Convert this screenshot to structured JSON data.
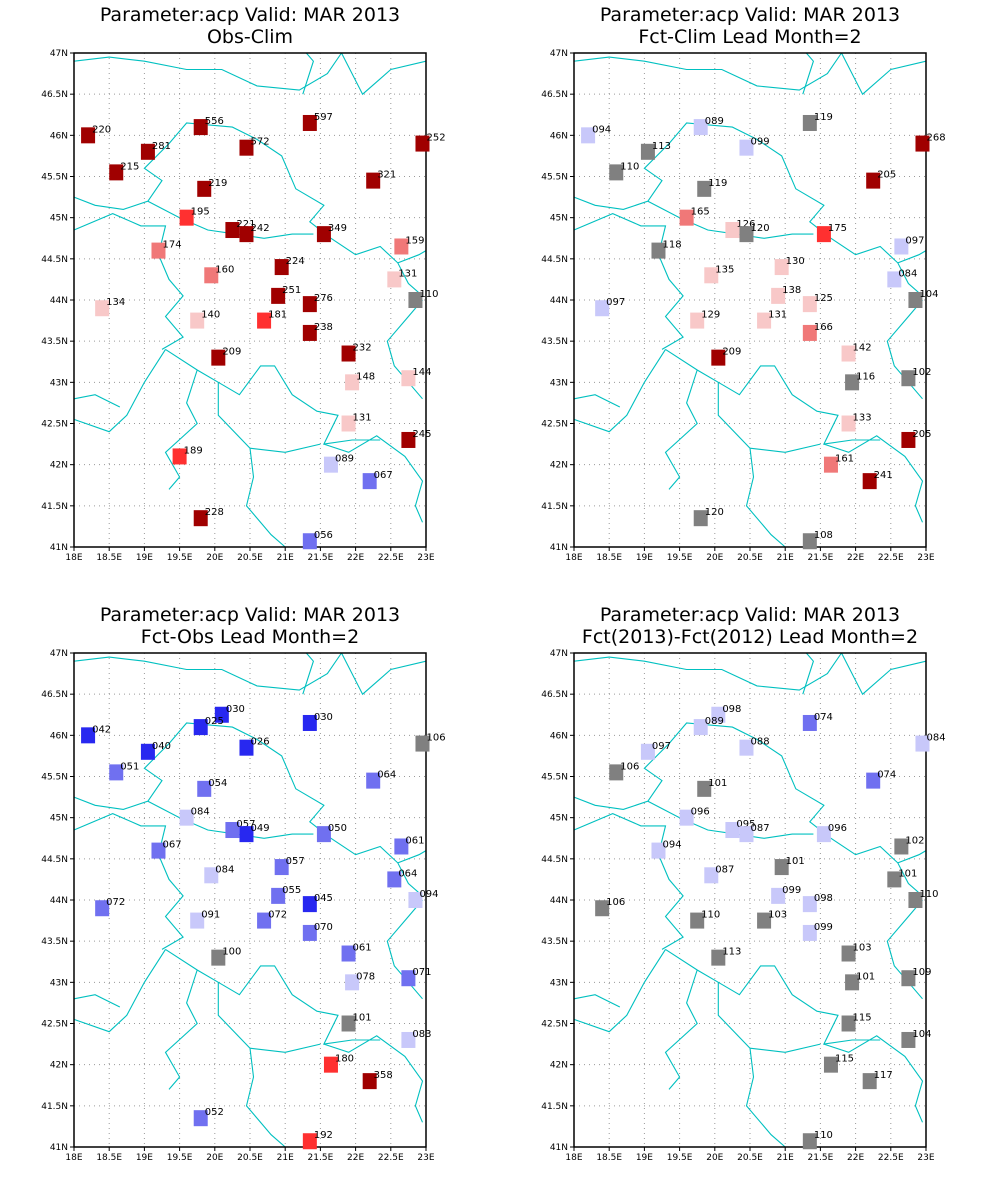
{
  "colors": {
    "dark_red": "#a00000",
    "red": "#ff3030",
    "salmon": "#f07878",
    "pink": "#f8c8c8",
    "lavender": "#c8c8fa",
    "mid_blue": "#7070f0",
    "blue": "#2828f0",
    "gray": "#808080",
    "border": "#00c0c0"
  },
  "lat_ticks": [
    "41N",
    "41.5N",
    "42N",
    "42.5N",
    "43N",
    "43.5N",
    "44N",
    "44.5N",
    "45N",
    "45.5N",
    "46N",
    "46.5N",
    "47N"
  ],
  "lon_ticks": [
    "18E",
    "18.5E",
    "19E",
    "19.5E",
    "20E",
    "20.5E",
    "21E",
    "21.5E",
    "22E",
    "22.5E",
    "23E"
  ],
  "panels": [
    {
      "title_line1": "Parameter:acp Valid: MAR 2013",
      "title_line2": "Obs-Clim",
      "stations": [
        {
          "lon": 18.2,
          "lat": 46.0,
          "label": "220",
          "color": "dark_red"
        },
        {
          "lon": 19.05,
          "lat": 45.8,
          "label": "281",
          "color": "dark_red"
        },
        {
          "lon": 18.6,
          "lat": 45.55,
          "label": "215",
          "color": "dark_red"
        },
        {
          "lon": 19.8,
          "lat": 46.1,
          "label": "556",
          "color": "dark_red"
        },
        {
          "lon": 20.45,
          "lat": 45.85,
          "label": "572",
          "color": "dark_red"
        },
        {
          "lon": 21.35,
          "lat": 46.15,
          "label": "597",
          "color": "dark_red"
        },
        {
          "lon": 22.95,
          "lat": 45.9,
          "label": "252",
          "color": "dark_red"
        },
        {
          "lon": 22.25,
          "lat": 45.45,
          "label": "321",
          "color": "dark_red"
        },
        {
          "lon": 19.85,
          "lat": 45.35,
          "label": "219",
          "color": "dark_red"
        },
        {
          "lon": 19.6,
          "lat": 45.0,
          "label": "195",
          "color": "red"
        },
        {
          "lon": 20.25,
          "lat": 44.85,
          "label": "221",
          "color": "dark_red"
        },
        {
          "lon": 20.45,
          "lat": 44.8,
          "label": "242",
          "color": "dark_red"
        },
        {
          "lon": 21.55,
          "lat": 44.8,
          "label": "349",
          "color": "dark_red"
        },
        {
          "lon": 19.2,
          "lat": 44.6,
          "label": "174",
          "color": "salmon"
        },
        {
          "lon": 22.65,
          "lat": 44.65,
          "label": "159",
          "color": "salmon"
        },
        {
          "lon": 19.95,
          "lat": 44.3,
          "label": "160",
          "color": "salmon"
        },
        {
          "lon": 20.95,
          "lat": 44.4,
          "label": "224",
          "color": "dark_red"
        },
        {
          "lon": 22.55,
          "lat": 44.25,
          "label": "131",
          "color": "pink"
        },
        {
          "lon": 20.9,
          "lat": 44.05,
          "label": "251",
          "color": "dark_red"
        },
        {
          "lon": 21.35,
          "lat": 43.95,
          "label": "276",
          "color": "dark_red"
        },
        {
          "lon": 22.85,
          "lat": 44.0,
          "label": "110",
          "color": "gray"
        },
        {
          "lon": 18.4,
          "lat": 43.9,
          "label": "134",
          "color": "pink"
        },
        {
          "lon": 19.75,
          "lat": 43.75,
          "label": "140",
          "color": "pink"
        },
        {
          "lon": 20.7,
          "lat": 43.75,
          "label": "181",
          "color": "red"
        },
        {
          "lon": 21.35,
          "lat": 43.6,
          "label": "238",
          "color": "dark_red"
        },
        {
          "lon": 21.9,
          "lat": 43.35,
          "label": "232",
          "color": "dark_red"
        },
        {
          "lon": 20.05,
          "lat": 43.3,
          "label": "209",
          "color": "dark_red"
        },
        {
          "lon": 21.95,
          "lat": 43.0,
          "label": "148",
          "color": "pink"
        },
        {
          "lon": 22.75,
          "lat": 43.05,
          "label": "144",
          "color": "pink"
        },
        {
          "lon": 21.9,
          "lat": 42.5,
          "label": "131",
          "color": "pink"
        },
        {
          "lon": 22.75,
          "lat": 42.3,
          "label": "245",
          "color": "dark_red"
        },
        {
          "lon": 19.5,
          "lat": 42.1,
          "label": "189",
          "color": "red"
        },
        {
          "lon": 21.65,
          "lat": 42.0,
          "label": "089",
          "color": "lavender"
        },
        {
          "lon": 22.2,
          "lat": 41.8,
          "label": "067",
          "color": "mid_blue"
        },
        {
          "lon": 19.8,
          "lat": 41.35,
          "label": "228",
          "color": "dark_red"
        },
        {
          "lon": 21.35,
          "lat": 41.07,
          "label": "056",
          "color": "mid_blue"
        }
      ]
    },
    {
      "title_line1": "Parameter:acp Valid: MAR 2013",
      "title_line2": "Fct-Clim Lead Month=2",
      "stations": [
        {
          "lon": 18.2,
          "lat": 46.0,
          "label": "094",
          "color": "lavender"
        },
        {
          "lon": 19.05,
          "lat": 45.8,
          "label": "113",
          "color": "gray"
        },
        {
          "lon": 18.6,
          "lat": 45.55,
          "label": "110",
          "color": "gray"
        },
        {
          "lon": 19.8,
          "lat": 46.1,
          "label": "089",
          "color": "lavender"
        },
        {
          "lon": 20.45,
          "lat": 45.85,
          "label": "099",
          "color": "lavender"
        },
        {
          "lon": 21.35,
          "lat": 46.15,
          "label": "119",
          "color": "gray"
        },
        {
          "lon": 22.95,
          "lat": 45.9,
          "label": "268",
          "color": "dark_red"
        },
        {
          "lon": 22.25,
          "lat": 45.45,
          "label": "205",
          "color": "dark_red"
        },
        {
          "lon": 19.85,
          "lat": 45.35,
          "label": "119",
          "color": "gray"
        },
        {
          "lon": 19.6,
          "lat": 45.0,
          "label": "165",
          "color": "salmon"
        },
        {
          "lon": 20.25,
          "lat": 44.85,
          "label": "126",
          "color": "pink"
        },
        {
          "lon": 20.45,
          "lat": 44.8,
          "label": "120",
          "color": "gray"
        },
        {
          "lon": 21.55,
          "lat": 44.8,
          "label": "175",
          "color": "red"
        },
        {
          "lon": 19.2,
          "lat": 44.6,
          "label": "118",
          "color": "gray"
        },
        {
          "lon": 22.65,
          "lat": 44.65,
          "label": "097",
          "color": "lavender"
        },
        {
          "lon": 19.95,
          "lat": 44.3,
          "label": "135",
          "color": "pink"
        },
        {
          "lon": 20.95,
          "lat": 44.4,
          "label": "130",
          "color": "pink"
        },
        {
          "lon": 22.55,
          "lat": 44.25,
          "label": "084",
          "color": "lavender"
        },
        {
          "lon": 20.9,
          "lat": 44.05,
          "label": "138",
          "color": "pink"
        },
        {
          "lon": 21.35,
          "lat": 43.95,
          "label": "125",
          "color": "pink"
        },
        {
          "lon": 22.85,
          "lat": 44.0,
          "label": "104",
          "color": "gray"
        },
        {
          "lon": 18.4,
          "lat": 43.9,
          "label": "097",
          "color": "lavender"
        },
        {
          "lon": 19.75,
          "lat": 43.75,
          "label": "129",
          "color": "pink"
        },
        {
          "lon": 20.7,
          "lat": 43.75,
          "label": "131",
          "color": "pink"
        },
        {
          "lon": 21.35,
          "lat": 43.6,
          "label": "166",
          "color": "salmon"
        },
        {
          "lon": 21.9,
          "lat": 43.35,
          "label": "142",
          "color": "pink"
        },
        {
          "lon": 20.05,
          "lat": 43.3,
          "label": "209",
          "color": "dark_red"
        },
        {
          "lon": 21.95,
          "lat": 43.0,
          "label": "116",
          "color": "gray"
        },
        {
          "lon": 22.75,
          "lat": 43.05,
          "label": "102",
          "color": "gray"
        },
        {
          "lon": 21.9,
          "lat": 42.5,
          "label": "133",
          "color": "pink"
        },
        {
          "lon": 22.75,
          "lat": 42.3,
          "label": "205",
          "color": "dark_red"
        },
        {
          "lon": 21.65,
          "lat": 42.0,
          "label": "161",
          "color": "salmon"
        },
        {
          "lon": 22.2,
          "lat": 41.8,
          "label": "241",
          "color": "dark_red"
        },
        {
          "lon": 19.8,
          "lat": 41.35,
          "label": "120",
          "color": "gray"
        },
        {
          "lon": 21.35,
          "lat": 41.07,
          "label": "108",
          "color": "gray"
        }
      ]
    },
    {
      "title_line1": "Parameter:acp Valid: MAR 2013",
      "title_line2": "Fct-Obs Lead Month=2",
      "stations": [
        {
          "lon": 18.2,
          "lat": 46.0,
          "label": "042",
          "color": "blue"
        },
        {
          "lon": 19.05,
          "lat": 45.8,
          "label": "040",
          "color": "blue"
        },
        {
          "lon": 18.6,
          "lat": 45.55,
          "label": "051",
          "color": "mid_blue"
        },
        {
          "lon": 20.1,
          "lat": 46.25,
          "label": "030",
          "color": "blue"
        },
        {
          "lon": 19.8,
          "lat": 46.1,
          "label": "025",
          "color": "blue"
        },
        {
          "lon": 20.45,
          "lat": 45.85,
          "label": "026",
          "color": "blue"
        },
        {
          "lon": 21.35,
          "lat": 46.15,
          "label": "030",
          "color": "blue"
        },
        {
          "lon": 22.95,
          "lat": 45.9,
          "label": "106",
          "color": "gray"
        },
        {
          "lon": 22.25,
          "lat": 45.45,
          "label": "064",
          "color": "mid_blue"
        },
        {
          "lon": 19.85,
          "lat": 45.35,
          "label": "054",
          "color": "mid_blue"
        },
        {
          "lon": 19.6,
          "lat": 45.0,
          "label": "084",
          "color": "lavender"
        },
        {
          "lon": 20.25,
          "lat": 44.85,
          "label": "057",
          "color": "mid_blue"
        },
        {
          "lon": 20.45,
          "lat": 44.8,
          "label": "049",
          "color": "blue"
        },
        {
          "lon": 21.55,
          "lat": 44.8,
          "label": "050",
          "color": "mid_blue"
        },
        {
          "lon": 19.2,
          "lat": 44.6,
          "label": "067",
          "color": "mid_blue"
        },
        {
          "lon": 22.65,
          "lat": 44.65,
          "label": "061",
          "color": "mid_blue"
        },
        {
          "lon": 19.95,
          "lat": 44.3,
          "label": "084",
          "color": "lavender"
        },
        {
          "lon": 20.95,
          "lat": 44.4,
          "label": "057",
          "color": "mid_blue"
        },
        {
          "lon": 22.55,
          "lat": 44.25,
          "label": "064",
          "color": "mid_blue"
        },
        {
          "lon": 20.9,
          "lat": 44.05,
          "label": "055",
          "color": "mid_blue"
        },
        {
          "lon": 21.35,
          "lat": 43.95,
          "label": "045",
          "color": "blue"
        },
        {
          "lon": 22.85,
          "lat": 44.0,
          "label": "094",
          "color": "lavender"
        },
        {
          "lon": 18.4,
          "lat": 43.9,
          "label": "072",
          "color": "mid_blue"
        },
        {
          "lon": 19.75,
          "lat": 43.75,
          "label": "091",
          "color": "lavender"
        },
        {
          "lon": 20.7,
          "lat": 43.75,
          "label": "072",
          "color": "mid_blue"
        },
        {
          "lon": 21.35,
          "lat": 43.6,
          "label": "070",
          "color": "mid_blue"
        },
        {
          "lon": 21.9,
          "lat": 43.35,
          "label": "061",
          "color": "mid_blue"
        },
        {
          "lon": 20.05,
          "lat": 43.3,
          "label": "100",
          "color": "gray"
        },
        {
          "lon": 21.95,
          "lat": 43.0,
          "label": "078",
          "color": "lavender"
        },
        {
          "lon": 22.75,
          "lat": 43.05,
          "label": "071",
          "color": "mid_blue"
        },
        {
          "lon": 21.9,
          "lat": 42.5,
          "label": "101",
          "color": "gray"
        },
        {
          "lon": 22.75,
          "lat": 42.3,
          "label": "083",
          "color": "lavender"
        },
        {
          "lon": 21.65,
          "lat": 42.0,
          "label": "180",
          "color": "red"
        },
        {
          "lon": 22.2,
          "lat": 41.8,
          "label": "358",
          "color": "dark_red"
        },
        {
          "lon": 19.8,
          "lat": 41.35,
          "label": "052",
          "color": "mid_blue"
        },
        {
          "lon": 21.35,
          "lat": 41.07,
          "label": "192",
          "color": "red"
        }
      ]
    },
    {
      "title_line1": "Parameter:acp Valid: MAR 2013",
      "title_line2": "Fct(2013)-Fct(2012) Lead Month=2",
      "stations": [
        {
          "lon": 19.05,
          "lat": 45.8,
          "label": "097",
          "color": "lavender"
        },
        {
          "lon": 18.6,
          "lat": 45.55,
          "label": "106",
          "color": "gray"
        },
        {
          "lon": 20.05,
          "lat": 46.25,
          "label": "098",
          "color": "lavender"
        },
        {
          "lon": 19.8,
          "lat": 46.1,
          "label": "089",
          "color": "lavender"
        },
        {
          "lon": 20.45,
          "lat": 45.85,
          "label": "088",
          "color": "lavender"
        },
        {
          "lon": 21.35,
          "lat": 46.15,
          "label": "074",
          "color": "mid_blue"
        },
        {
          "lon": 22.95,
          "lat": 45.9,
          "label": "084",
          "color": "lavender"
        },
        {
          "lon": 22.25,
          "lat": 45.45,
          "label": "074",
          "color": "mid_blue"
        },
        {
          "lon": 19.85,
          "lat": 45.35,
          "label": "101",
          "color": "gray"
        },
        {
          "lon": 19.6,
          "lat": 45.0,
          "label": "096",
          "color": "lavender"
        },
        {
          "lon": 20.25,
          "lat": 44.85,
          "label": "095",
          "color": "lavender"
        },
        {
          "lon": 20.45,
          "lat": 44.8,
          "label": "087",
          "color": "lavender"
        },
        {
          "lon": 21.55,
          "lat": 44.8,
          "label": "096",
          "color": "lavender"
        },
        {
          "lon": 19.2,
          "lat": 44.6,
          "label": "094",
          "color": "lavender"
        },
        {
          "lon": 22.65,
          "lat": 44.65,
          "label": "102",
          "color": "gray"
        },
        {
          "lon": 19.95,
          "lat": 44.3,
          "label": "087",
          "color": "lavender"
        },
        {
          "lon": 20.95,
          "lat": 44.4,
          "label": "101",
          "color": "gray"
        },
        {
          "lon": 22.55,
          "lat": 44.25,
          "label": "101",
          "color": "gray"
        },
        {
          "lon": 20.9,
          "lat": 44.05,
          "label": "099",
          "color": "lavender"
        },
        {
          "lon": 21.35,
          "lat": 43.95,
          "label": "098",
          "color": "lavender"
        },
        {
          "lon": 22.85,
          "lat": 44.0,
          "label": "110",
          "color": "gray"
        },
        {
          "lon": 18.4,
          "lat": 43.9,
          "label": "106",
          "color": "gray"
        },
        {
          "lon": 19.75,
          "lat": 43.75,
          "label": "110",
          "color": "gray"
        },
        {
          "lon": 20.7,
          "lat": 43.75,
          "label": "103",
          "color": "gray"
        },
        {
          "lon": 21.35,
          "lat": 43.6,
          "label": "099",
          "color": "lavender"
        },
        {
          "lon": 21.9,
          "lat": 43.35,
          "label": "103",
          "color": "gray"
        },
        {
          "lon": 20.05,
          "lat": 43.3,
          "label": "113",
          "color": "gray"
        },
        {
          "lon": 21.95,
          "lat": 43.0,
          "label": "101",
          "color": "gray"
        },
        {
          "lon": 22.75,
          "lat": 43.05,
          "label": "109",
          "color": "gray"
        },
        {
          "lon": 21.9,
          "lat": 42.5,
          "label": "115",
          "color": "gray"
        },
        {
          "lon": 22.75,
          "lat": 42.3,
          "label": "104",
          "color": "gray"
        },
        {
          "lon": 21.65,
          "lat": 42.0,
          "label": "115",
          "color": "gray"
        },
        {
          "lon": 22.2,
          "lat": 41.8,
          "label": "117",
          "color": "gray"
        },
        {
          "lon": 21.35,
          "lat": 41.07,
          "label": "110",
          "color": "gray"
        }
      ]
    }
  ]
}
